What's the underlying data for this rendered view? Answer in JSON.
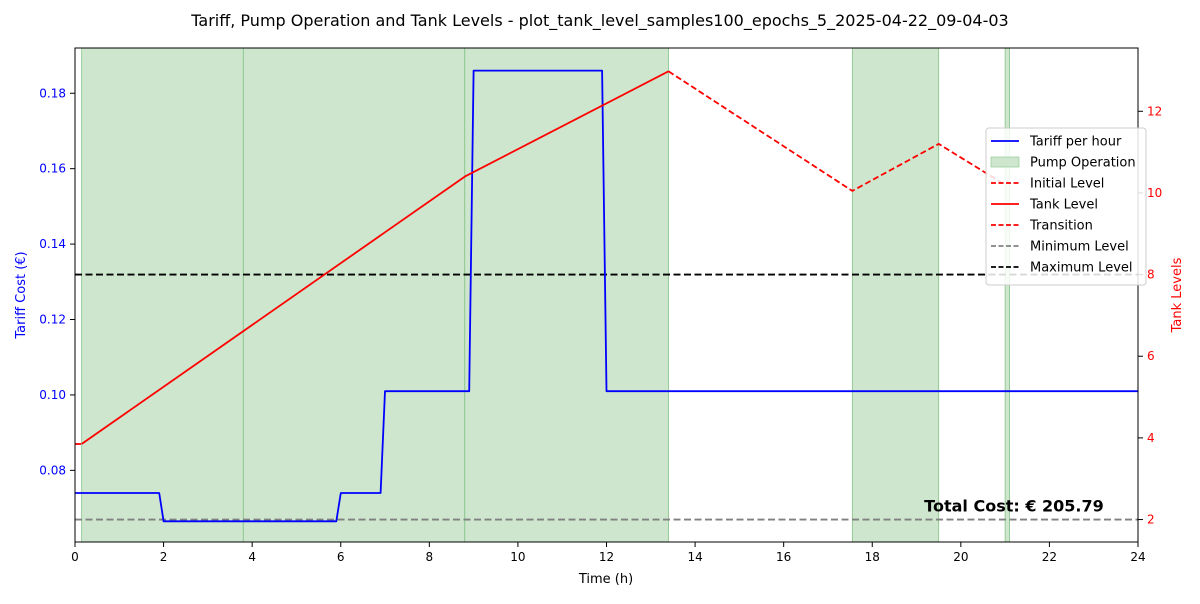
{
  "chart_data": {
    "type": "line",
    "title": "Tariff, Pump Operation and Tank Levels - plot_tank_level_samples100_epochs_5_2025-04-22_09-04-03",
    "xlabel": "Time (h)",
    "ylabel_left": "Tariff Cost (€)",
    "ylabel_right": "Tank Levels",
    "xlim": [
      0,
      24
    ],
    "ylim_left": [
      0.061,
      0.192
    ],
    "ylim_right": [
      1.45,
      13.55
    ],
    "x_ticks": [
      0,
      2,
      4,
      6,
      8,
      10,
      12,
      14,
      16,
      18,
      20,
      22,
      24
    ],
    "y_left_ticks": [
      0.08,
      0.1,
      0.12,
      0.14,
      0.16,
      0.18
    ],
    "y_left_tick_labels": [
      "0.08",
      "0.10",
      "0.12",
      "0.14",
      "0.16",
      "0.18"
    ],
    "y_right_ticks": [
      2,
      4,
      6,
      8,
      10,
      12
    ],
    "colors": {
      "tariff": "#0000ff",
      "tank": "#ff0000",
      "pump_fill": "#cde6cd",
      "pump_edge": "#86c386",
      "min_level": "#808080",
      "max_level": "#000000"
    },
    "series": [
      {
        "name": "Tariff per hour",
        "axis": "left",
        "style": "solid",
        "color": "#0000ff",
        "points": [
          [
            0,
            0.074
          ],
          [
            1.9,
            0.074
          ],
          [
            2.0,
            0.0665
          ],
          [
            5.9,
            0.0665
          ],
          [
            6.0,
            0.074
          ],
          [
            6.9,
            0.074
          ],
          [
            7.0,
            0.101
          ],
          [
            8.9,
            0.101
          ],
          [
            9.0,
            0.186
          ],
          [
            11.9,
            0.186
          ],
          [
            12.0,
            0.101
          ],
          [
            24,
            0.101
          ]
        ]
      },
      {
        "name": "Initial Level",
        "axis": "right",
        "style": "dashed",
        "color": "#ff0000",
        "points": [
          [
            0,
            3.85
          ],
          [
            0.15,
            3.85
          ]
        ]
      },
      {
        "name": "Tank Level",
        "axis": "right",
        "style": "solid",
        "color": "#ff0000",
        "points": [
          [
            0.15,
            3.85
          ],
          [
            8.8,
            10.4
          ],
          [
            13.4,
            12.98
          ]
        ]
      },
      {
        "name": "Transition",
        "axis": "right",
        "style": "dashed",
        "color": "#ff0000",
        "points": [
          [
            13.4,
            12.98
          ],
          [
            17.55,
            10.05
          ],
          [
            19.5,
            11.2
          ],
          [
            21.0,
            10.2
          ]
        ]
      }
    ],
    "hlines": [
      {
        "name": "Minimum Level",
        "axis": "right",
        "y": 2,
        "color": "#808080",
        "style": "dashed"
      },
      {
        "name": "Maximum Level",
        "axis": "right",
        "y": 8,
        "color": "#000000",
        "style": "dashed"
      }
    ],
    "pump_operation": {
      "name": "Pump Operation",
      "spans": [
        [
          0.15,
          3.8
        ],
        [
          3.8,
          8.8
        ],
        [
          8.8,
          13.4
        ],
        [
          17.55,
          19.5
        ],
        [
          21.0,
          21.1
        ]
      ]
    },
    "legend": {
      "position": "right",
      "entries": [
        {
          "label": "Tariff per hour",
          "kind": "line",
          "color": "#0000ff",
          "style": "solid"
        },
        {
          "label": "Pump Operation",
          "kind": "patch",
          "color": "#cde6cd"
        },
        {
          "label": "Initial Level",
          "kind": "line",
          "color": "#ff0000",
          "style": "dashed"
        },
        {
          "label": "Tank Level",
          "kind": "line",
          "color": "#ff0000",
          "style": "solid"
        },
        {
          "label": "Transition",
          "kind": "line",
          "color": "#ff0000",
          "style": "dashed"
        },
        {
          "label": "Minimum Level",
          "kind": "line",
          "color": "#808080",
          "style": "dashed"
        },
        {
          "label": "Maximum Level",
          "kind": "line",
          "color": "#000000",
          "style": "dashed"
        }
      ]
    },
    "annotation": {
      "text": "Total Cost: € 205.79",
      "x": 21.2,
      "y_right": 2.2
    }
  }
}
